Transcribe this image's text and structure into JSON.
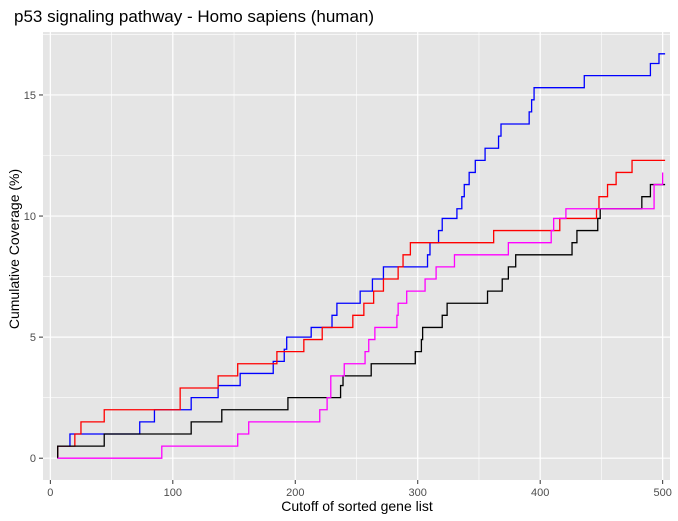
{
  "chart_data": {
    "type": "line",
    "title": "p53 signaling pathway - Homo sapiens (human)",
    "xlabel": "Cutoff of sorted gene list",
    "ylabel": "Cumulative Coverage (%)",
    "xlim": [
      -6,
      506
    ],
    "ylim": [
      -0.9,
      17.6
    ],
    "x_ticks": [
      0,
      100,
      200,
      300,
      400,
      500
    ],
    "y_ticks": [
      0,
      5,
      10,
      15
    ],
    "x_tick_labels": [
      "0",
      "100",
      "200",
      "300",
      "400",
      "500"
    ],
    "y_tick_labels": [
      "0",
      "5",
      "10",
      "15"
    ],
    "grid": true,
    "panel_background": "#e5e5e5",
    "grid_color": "#ffffff",
    "series": [
      {
        "color": "#0000ff",
        "points": [
          [
            6,
            0
          ],
          [
            6,
            0.5
          ],
          [
            16,
            0.5
          ],
          [
            16,
            1.0
          ],
          [
            73,
            1.0
          ],
          [
            73,
            1.5
          ],
          [
            85,
            1.5
          ],
          [
            85,
            2.0
          ],
          [
            115,
            2.0
          ],
          [
            115,
            2.5
          ],
          [
            137,
            2.5
          ],
          [
            137,
            3.0
          ],
          [
            155,
            3.0
          ],
          [
            155,
            3.5
          ],
          [
            182,
            3.5
          ],
          [
            182,
            4.0
          ],
          [
            191,
            4.0
          ],
          [
            191,
            4.5
          ],
          [
            193,
            4.5
          ],
          [
            193,
            5.0
          ],
          [
            213,
            5.0
          ],
          [
            213,
            5.4
          ],
          [
            230,
            5.4
          ],
          [
            230,
            5.9
          ],
          [
            234,
            5.9
          ],
          [
            234,
            6.4
          ],
          [
            253,
            6.4
          ],
          [
            253,
            6.9
          ],
          [
            263,
            6.9
          ],
          [
            263,
            7.4
          ],
          [
            272,
            7.4
          ],
          [
            272,
            7.9
          ],
          [
            308,
            7.9
          ],
          [
            308,
            8.4
          ],
          [
            310,
            8.4
          ],
          [
            310,
            8.9
          ],
          [
            317,
            8.9
          ],
          [
            317,
            9.4
          ],
          [
            320,
            9.4
          ],
          [
            320,
            9.9
          ],
          [
            332,
            9.9
          ],
          [
            332,
            10.3
          ],
          [
            336,
            10.3
          ],
          [
            336,
            10.8
          ],
          [
            338,
            10.8
          ],
          [
            338,
            11.3
          ],
          [
            342,
            11.3
          ],
          [
            342,
            11.8
          ],
          [
            347,
            11.8
          ],
          [
            347,
            12.3
          ],
          [
            355,
            12.3
          ],
          [
            355,
            12.8
          ],
          [
            366,
            12.8
          ],
          [
            366,
            13.3
          ],
          [
            368,
            13.3
          ],
          [
            368,
            13.8
          ],
          [
            391,
            13.8
          ],
          [
            391,
            14.3
          ],
          [
            393,
            14.3
          ],
          [
            393,
            14.8
          ],
          [
            395,
            14.8
          ],
          [
            395,
            15.3
          ],
          [
            436,
            15.3
          ],
          [
            436,
            15.8
          ],
          [
            490,
            15.8
          ],
          [
            490,
            16.3
          ],
          [
            497,
            16.3
          ],
          [
            497,
            16.7
          ],
          [
            502,
            16.7
          ]
        ]
      },
      {
        "color": "#ff0000",
        "points": [
          [
            6,
            0
          ],
          [
            6,
            0.5
          ],
          [
            20,
            0.5
          ],
          [
            20,
            1.0
          ],
          [
            25,
            1.0
          ],
          [
            25,
            1.5
          ],
          [
            44,
            1.5
          ],
          [
            44,
            2.0
          ],
          [
            106,
            2.0
          ],
          [
            106,
            2.9
          ],
          [
            137,
            2.9
          ],
          [
            137,
            3.4
          ],
          [
            153,
            3.4
          ],
          [
            153,
            3.9
          ],
          [
            185,
            3.9
          ],
          [
            185,
            4.4
          ],
          [
            207,
            4.4
          ],
          [
            207,
            4.9
          ],
          [
            222,
            4.9
          ],
          [
            222,
            5.4
          ],
          [
            247,
            5.4
          ],
          [
            247,
            5.9
          ],
          [
            256,
            5.9
          ],
          [
            256,
            6.4
          ],
          [
            264,
            6.4
          ],
          [
            264,
            6.9
          ],
          [
            272,
            6.9
          ],
          [
            272,
            7.4
          ],
          [
            284,
            7.4
          ],
          [
            284,
            7.9
          ],
          [
            288,
            7.9
          ],
          [
            288,
            8.4
          ],
          [
            294,
            8.4
          ],
          [
            294,
            8.9
          ],
          [
            362,
            8.9
          ],
          [
            362,
            9.4
          ],
          [
            416,
            9.4
          ],
          [
            416,
            9.9
          ],
          [
            446,
            9.9
          ],
          [
            446,
            10.3
          ],
          [
            448,
            10.3
          ],
          [
            448,
            10.8
          ],
          [
            455,
            10.8
          ],
          [
            455,
            11.3
          ],
          [
            462,
            11.3
          ],
          [
            462,
            11.8
          ],
          [
            475,
            11.8
          ],
          [
            475,
            12.3
          ],
          [
            502,
            12.3
          ]
        ]
      },
      {
        "color": "#000000",
        "points": [
          [
            6,
            0
          ],
          [
            6,
            0.5
          ],
          [
            44,
            0.5
          ],
          [
            44,
            1.0
          ],
          [
            115,
            1.0
          ],
          [
            115,
            1.5
          ],
          [
            140,
            1.5
          ],
          [
            140,
            2.0
          ],
          [
            194,
            2.0
          ],
          [
            194,
            2.5
          ],
          [
            237,
            2.5
          ],
          [
            237,
            3.0
          ],
          [
            239,
            3.0
          ],
          [
            239,
            3.4
          ],
          [
            262,
            3.4
          ],
          [
            262,
            3.9
          ],
          [
            298,
            3.9
          ],
          [
            298,
            4.4
          ],
          [
            303,
            4.4
          ],
          [
            303,
            4.9
          ],
          [
            304,
            4.9
          ],
          [
            304,
            5.4
          ],
          [
            320,
            5.4
          ],
          [
            320,
            5.9
          ],
          [
            324,
            5.9
          ],
          [
            324,
            6.4
          ],
          [
            357,
            6.4
          ],
          [
            357,
            6.9
          ],
          [
            369,
            6.9
          ],
          [
            369,
            7.4
          ],
          [
            374,
            7.4
          ],
          [
            374,
            7.9
          ],
          [
            380,
            7.9
          ],
          [
            380,
            8.4
          ],
          [
            426,
            8.4
          ],
          [
            426,
            8.9
          ],
          [
            430,
            8.9
          ],
          [
            430,
            9.4
          ],
          [
            447,
            9.4
          ],
          [
            447,
            9.9
          ],
          [
            449,
            9.9
          ],
          [
            449,
            10.3
          ],
          [
            483,
            10.3
          ],
          [
            483,
            10.8
          ],
          [
            490,
            10.8
          ],
          [
            490,
            11.3
          ],
          [
            502,
            11.3
          ]
        ]
      },
      {
        "color": "#ff00ff",
        "points": [
          [
            6,
            0
          ],
          [
            91,
            0
          ],
          [
            91,
            0.5
          ],
          [
            153,
            0.5
          ],
          [
            153,
            1.0
          ],
          [
            162,
            1.0
          ],
          [
            162,
            1.5
          ],
          [
            220,
            1.5
          ],
          [
            220,
            2.0
          ],
          [
            226,
            2.0
          ],
          [
            226,
            2.5
          ],
          [
            229,
            2.5
          ],
          [
            229,
            3.4
          ],
          [
            240,
            3.4
          ],
          [
            240,
            3.9
          ],
          [
            257,
            3.9
          ],
          [
            257,
            4.4
          ],
          [
            260,
            4.4
          ],
          [
            260,
            4.9
          ],
          [
            265,
            4.9
          ],
          [
            265,
            5.4
          ],
          [
            283,
            5.4
          ],
          [
            283,
            5.9
          ],
          [
            284,
            5.9
          ],
          [
            284,
            6.4
          ],
          [
            291,
            6.4
          ],
          [
            291,
            6.9
          ],
          [
            306,
            6.9
          ],
          [
            306,
            7.4
          ],
          [
            315,
            7.4
          ],
          [
            315,
            7.9
          ],
          [
            330,
            7.9
          ],
          [
            330,
            8.4
          ],
          [
            374,
            8.4
          ],
          [
            374,
            8.9
          ],
          [
            409,
            8.9
          ],
          [
            409,
            9.4
          ],
          [
            411,
            9.4
          ],
          [
            411,
            9.9
          ],
          [
            421,
            9.9
          ],
          [
            421,
            10.3
          ],
          [
            493,
            10.3
          ],
          [
            493,
            11.3
          ],
          [
            500,
            11.3
          ],
          [
            500,
            11.8
          ]
        ]
      }
    ]
  }
}
